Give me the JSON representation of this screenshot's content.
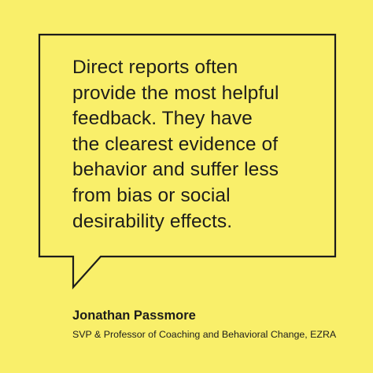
{
  "colors": {
    "background": "#f9ef6a",
    "text": "#1d1d1b",
    "bubble_outline": "#1d1d1b"
  },
  "quote": {
    "lines": [
      "Direct reports often",
      "provide the most helpful",
      "feedback. They have",
      "the clearest evidence of",
      "behavior and suffer less",
      "from bias or social",
      "desirability effects."
    ]
  },
  "attribution": {
    "name": "Jonathan Passmore",
    "title": "SVP & Professor of Coaching and Behavioral Change, EZRA"
  },
  "icons": {
    "bubble": "speech-bubble-outline"
  }
}
